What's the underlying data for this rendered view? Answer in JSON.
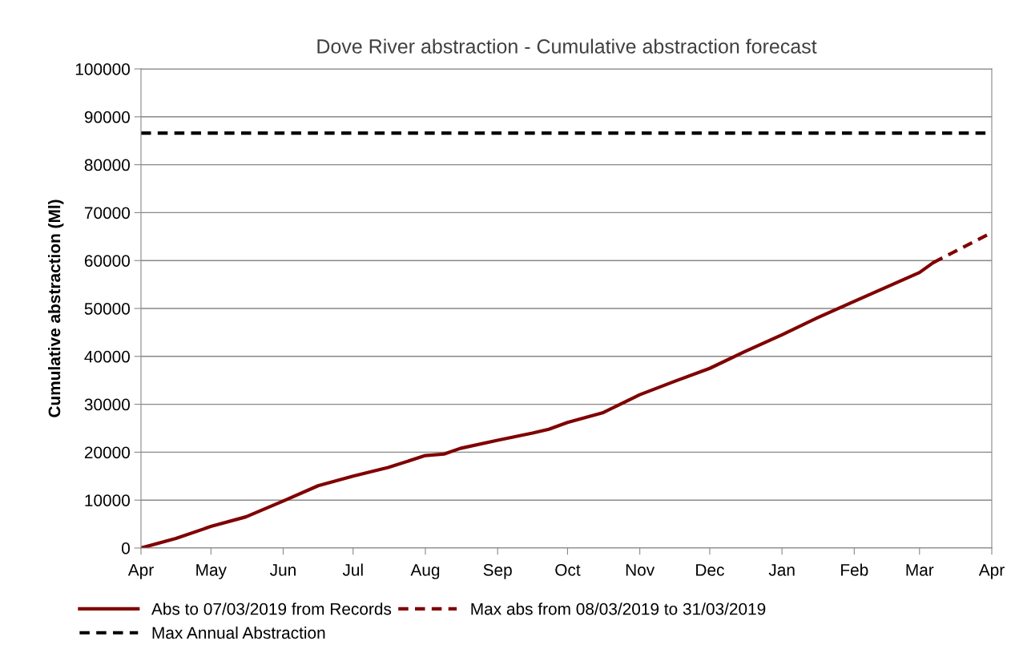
{
  "chart_data": {
    "type": "line",
    "title": "Dove River abstraction - Cumulative abstraction forecast",
    "ylabel": "Cumulative abstraction (Ml)",
    "xlim": [
      "2018-04-01",
      "2019-04-01"
    ],
    "xticks": [
      {
        "value": "2018-04-01",
        "label": "Apr"
      },
      {
        "value": "2018-05-01",
        "label": "May"
      },
      {
        "value": "2018-06-01",
        "label": "Jun"
      },
      {
        "value": "2018-07-01",
        "label": "Jul"
      },
      {
        "value": "2018-08-01",
        "label": "Aug"
      },
      {
        "value": "2018-09-01",
        "label": "Sep"
      },
      {
        "value": "2018-10-01",
        "label": "Oct"
      },
      {
        "value": "2018-11-01",
        "label": "Nov"
      },
      {
        "value": "2018-12-01",
        "label": "Dec"
      },
      {
        "value": "2019-01-01",
        "label": "Jan"
      },
      {
        "value": "2019-02-01",
        "label": "Feb"
      },
      {
        "value": "2019-03-01",
        "label": "Mar"
      },
      {
        "value": "2019-04-01",
        "label": "Apr"
      }
    ],
    "ylim": [
      0,
      100000
    ],
    "yticks": [
      0,
      10000,
      20000,
      30000,
      40000,
      50000,
      60000,
      70000,
      80000,
      90000,
      100000
    ],
    "grid": "y",
    "legend": "bottom",
    "series": [
      {
        "name": "Abs to 07/03/2019 from Records",
        "color": "#800000",
        "line_style": "solid",
        "x": [
          "2018-04-01",
          "2018-04-16",
          "2018-05-01",
          "2018-05-16",
          "2018-06-01",
          "2018-06-16",
          "2018-07-01",
          "2018-07-16",
          "2018-08-01",
          "2018-08-09",
          "2018-08-16",
          "2018-09-01",
          "2018-09-16",
          "2018-09-23",
          "2018-10-01",
          "2018-10-16",
          "2018-11-01",
          "2018-11-16",
          "2018-12-01",
          "2018-12-16",
          "2019-01-01",
          "2019-01-16",
          "2019-02-01",
          "2019-02-15",
          "2019-03-01",
          "2019-03-07"
        ],
        "values": [
          0,
          2000,
          4500,
          6500,
          9800,
          13000,
          15000,
          16800,
          19300,
          19600,
          20800,
          22500,
          24000,
          24800,
          26200,
          28200,
          32000,
          34800,
          37500,
          41000,
          44500,
          48000,
          51500,
          54500,
          57500,
          59600
        ]
      },
      {
        "name": "Max abs from 08/03/2019 to 31/03/2019",
        "color": "#800000",
        "line_style": "dashed",
        "x": [
          "2019-03-07",
          "2019-03-31"
        ],
        "values": [
          59600,
          65600
        ]
      },
      {
        "name": "Max Annual Abstraction",
        "color": "#000000",
        "line_style": "dashed",
        "x": [
          "2018-04-01",
          "2019-04-01"
        ],
        "values": [
          86600,
          86600
        ]
      }
    ]
  }
}
